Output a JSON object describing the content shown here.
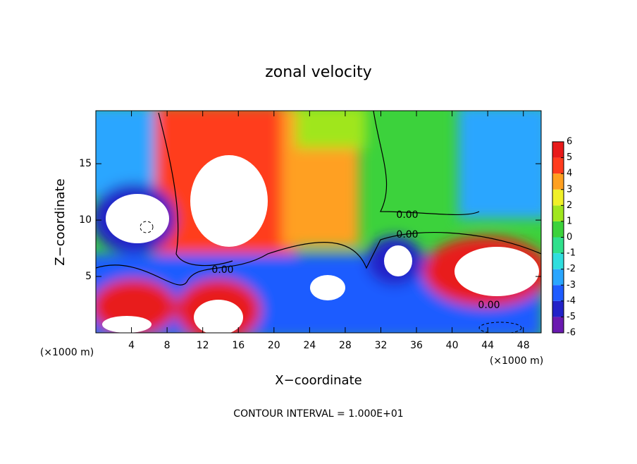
{
  "chart_data": {
    "type": "contour",
    "title": "zonal velocity",
    "xlabel": "X−coordinate",
    "ylabel": "Z−coordinate",
    "x_unit_label": "(×1000 m)",
    "x_unit_label_right": "(×1000 m)",
    "footer": "CONTOUR INTERVAL = 1.000E+01",
    "contour_labels": [
      "0.00",
      "0.00",
      "0.00",
      "0.00"
    ],
    "xlim": [
      0,
      50
    ],
    "xticks": [
      4,
      8,
      12,
      16,
      20,
      24,
      28,
      32,
      36,
      40,
      44,
      48
    ],
    "ylim": [
      0,
      19.7
    ],
    "yticks": [
      5,
      10,
      15
    ],
    "colorbar": {
      "lim": [
        -6,
        6
      ],
      "ticks": [
        6,
        5,
        4,
        3,
        2,
        1,
        0,
        -1,
        -2,
        -3,
        -4,
        -5,
        -6
      ],
      "colors": [
        "#6a1ab0",
        "#2222c8",
        "#1e5cff",
        "#2aa6ff",
        "#30dede",
        "#30e08c",
        "#3cd23c",
        "#a0e61e",
        "#f0f028",
        "#ffa020",
        "#ff3c1e",
        "#e81a1a"
      ]
    }
  }
}
